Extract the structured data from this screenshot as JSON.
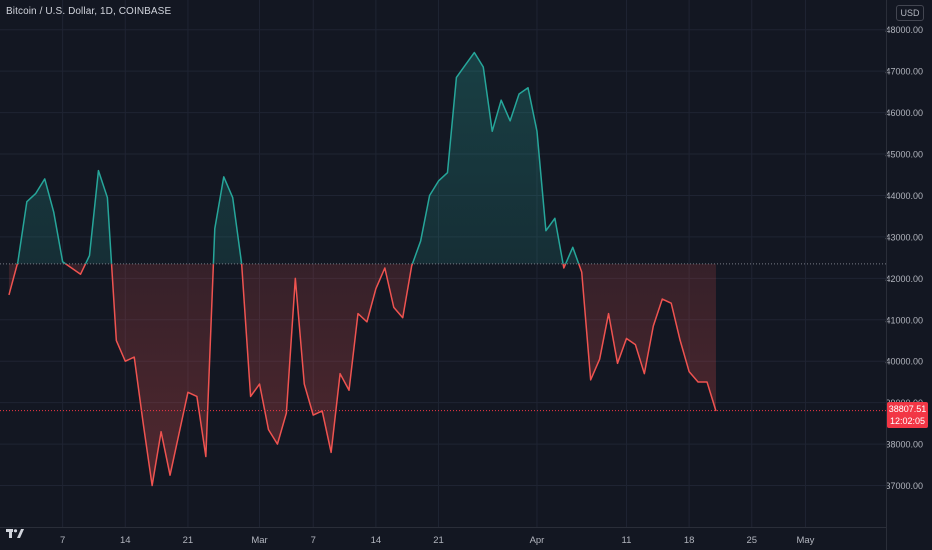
{
  "header": {
    "symbol_title": "Bitcoin / U.S. Dollar, 1D, COINBASE",
    "currency": "USD"
  },
  "last_price": {
    "value": "38807.51",
    "countdown": "12:02:05"
  },
  "colors": {
    "background": "#131722",
    "up": "#26a69a",
    "down": "#ef5350",
    "grid": "#1f2433",
    "axis_text": "#b2b5be",
    "price_tag": "#f23645"
  },
  "chart_data": {
    "type": "area",
    "baseline": 42350,
    "ylim": [
      36000,
      48500
    ],
    "y_ticks": [
      37000,
      38000,
      39000,
      40000,
      41000,
      42000,
      43000,
      44000,
      45000,
      46000,
      47000,
      48000
    ],
    "y_tick_labels": [
      "37000.00",
      "38000.00",
      "39000.00",
      "40000.00",
      "41000.00",
      "42000.00",
      "43000.00",
      "44000.00",
      "45000.00",
      "46000.00",
      "47000.00",
      "48000.00"
    ],
    "x_tick_labels": [
      "7",
      "14",
      "21",
      "Mar",
      "7",
      "14",
      "21",
      "Apr",
      "11",
      "18",
      "25",
      "May"
    ],
    "x_tick_dates": [
      "2022-02-07",
      "2022-02-14",
      "2022-02-21",
      "2022-03-01",
      "2022-03-07",
      "2022-03-14",
      "2022-03-21",
      "2022-04-01",
      "2022-04-11",
      "2022-04-18",
      "2022-04-25",
      "2022-05-01"
    ],
    "x_range": [
      "2022-01-31",
      "2022-05-10"
    ],
    "grid": true,
    "last_price": 38807.51,
    "series": [
      {
        "values": [
          [
            "2022-02-01",
            41600
          ],
          [
            "2022-02-02",
            42400
          ],
          [
            "2022-02-03",
            43850
          ],
          [
            "2022-02-04",
            44050
          ],
          [
            "2022-02-05",
            44400
          ],
          [
            "2022-02-06",
            43600
          ],
          [
            "2022-02-07",
            42400
          ],
          [
            "2022-02-08",
            42250
          ],
          [
            "2022-02-09",
            42100
          ],
          [
            "2022-02-10",
            42550
          ],
          [
            "2022-02-11",
            44600
          ],
          [
            "2022-02-12",
            43950
          ],
          [
            "2022-02-13",
            40500
          ],
          [
            "2022-02-14",
            40000
          ],
          [
            "2022-02-15",
            40100
          ],
          [
            "2022-02-16",
            38500
          ],
          [
            "2022-02-17",
            37000
          ],
          [
            "2022-02-18",
            38300
          ],
          [
            "2022-02-19",
            37250
          ],
          [
            "2022-02-20",
            38250
          ],
          [
            "2022-02-21",
            39250
          ],
          [
            "2022-02-22",
            39150
          ],
          [
            "2022-02-23",
            37700
          ],
          [
            "2022-02-24",
            43200
          ],
          [
            "2022-02-25",
            44450
          ],
          [
            "2022-02-26",
            43950
          ],
          [
            "2022-02-27",
            42350
          ],
          [
            "2022-02-28",
            39150
          ],
          [
            "2022-03-01",
            39450
          ],
          [
            "2022-03-02",
            38350
          ],
          [
            "2022-03-03",
            38000
          ],
          [
            "2022-03-04",
            38750
          ],
          [
            "2022-03-05",
            42000
          ],
          [
            "2022-03-06",
            39450
          ],
          [
            "2022-03-07",
            38700
          ],
          [
            "2022-03-08",
            38800
          ],
          [
            "2022-03-09",
            37800
          ],
          [
            "2022-03-10",
            39700
          ],
          [
            "2022-03-11",
            39300
          ],
          [
            "2022-03-12",
            41150
          ],
          [
            "2022-03-13",
            40950
          ],
          [
            "2022-03-14",
            41750
          ],
          [
            "2022-03-15",
            42250
          ],
          [
            "2022-03-16",
            41300
          ],
          [
            "2022-03-17",
            41050
          ],
          [
            "2022-03-18",
            42300
          ],
          [
            "2022-03-19",
            42900
          ],
          [
            "2022-03-20",
            44000
          ],
          [
            "2022-03-21",
            44350
          ],
          [
            "2022-03-22",
            44550
          ],
          [
            "2022-03-23",
            46850
          ],
          [
            "2022-03-24",
            47150
          ],
          [
            "2022-03-25",
            47450
          ],
          [
            "2022-03-26",
            47100
          ],
          [
            "2022-03-27",
            45550
          ],
          [
            "2022-03-28",
            46300
          ],
          [
            "2022-03-29",
            45800
          ],
          [
            "2022-03-30",
            46450
          ],
          [
            "2022-03-31",
            46600
          ],
          [
            "2022-04-01",
            45550
          ],
          [
            "2022-04-02",
            43150
          ],
          [
            "2022-04-03",
            43450
          ],
          [
            "2022-04-04",
            42250
          ],
          [
            "2022-04-05",
            42750
          ],
          [
            "2022-04-06",
            42150
          ],
          [
            "2022-04-07",
            39550
          ],
          [
            "2022-04-08",
            40050
          ],
          [
            "2022-04-09",
            41150
          ],
          [
            "2022-04-10",
            39950
          ],
          [
            "2022-04-11",
            40550
          ],
          [
            "2022-04-12",
            40400
          ],
          [
            "2022-04-13",
            39700
          ],
          [
            "2022-04-14",
            40850
          ],
          [
            "2022-04-15",
            41500
          ],
          [
            "2022-04-16",
            41400
          ],
          [
            "2022-04-17",
            40500
          ],
          [
            "2022-04-18",
            39750
          ],
          [
            "2022-04-19",
            39500
          ],
          [
            "2022-04-20",
            39500
          ],
          [
            "2022-04-21",
            38800
          ]
        ]
      }
    ]
  }
}
